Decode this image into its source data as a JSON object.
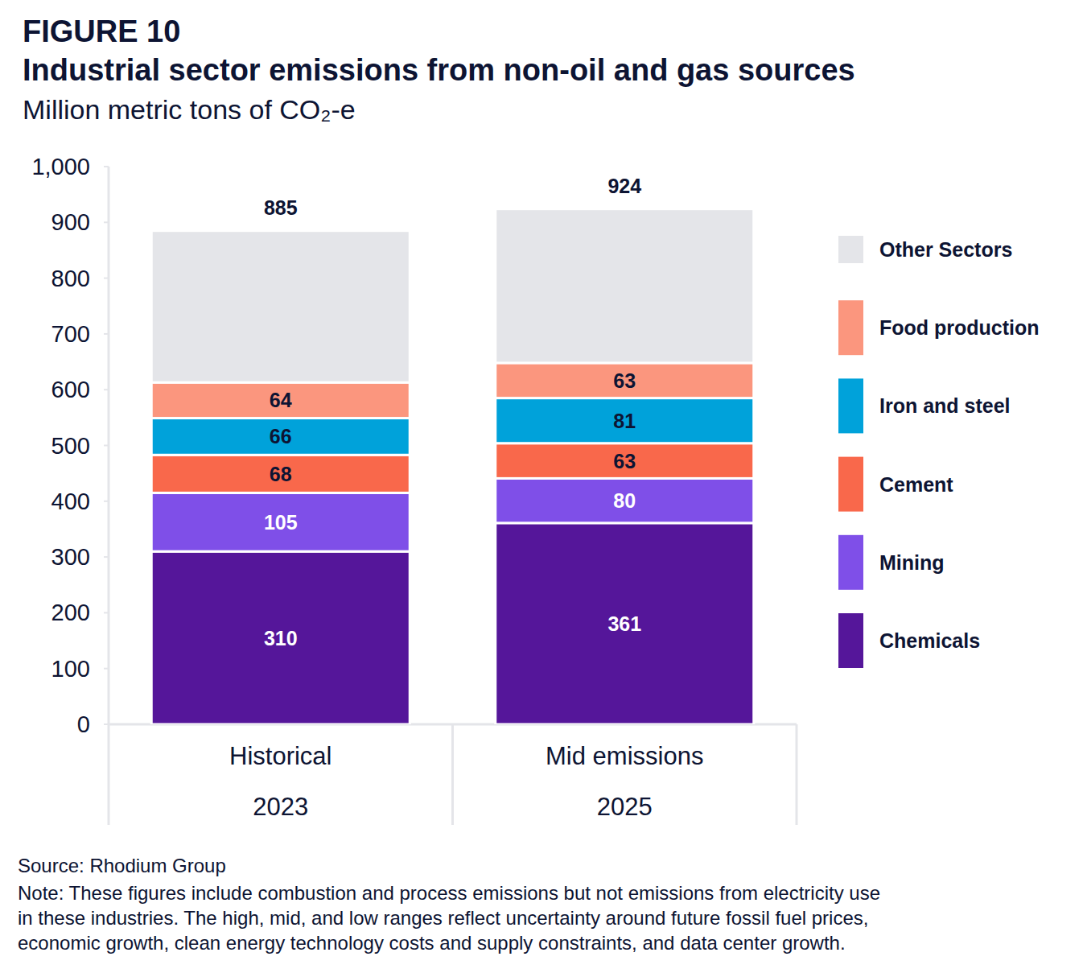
{
  "chart_data": {
    "type": "bar",
    "stacked": true,
    "data_labels": true,
    "grid": false,
    "legend": "right",
    "figure_label": "FIGURE 10",
    "title": "Industrial sector emissions from non-oil and gas sources",
    "subtitle": "Million metric tons of CO₂-e",
    "categories": [
      "Historical",
      "Mid emissions"
    ],
    "sub_categories": [
      "2023",
      "2025"
    ],
    "totals": [
      885,
      924
    ],
    "ylim": [
      0,
      1000
    ],
    "yticks": [
      0,
      100,
      200,
      300,
      400,
      500,
      600,
      700,
      800,
      900,
      {
        "value": 1000,
        "label": "1,000"
      }
    ],
    "series": [
      {
        "name": "Chemicals",
        "color": "#55169a",
        "values": [
          310,
          361
        ]
      },
      {
        "name": "Mining",
        "color": "#7f4fe8",
        "values": [
          105,
          80
        ]
      },
      {
        "name": "Cement",
        "color": "#f9684b",
        "values": [
          68,
          63
        ]
      },
      {
        "name": "Iron and steel",
        "color": "#00a2da",
        "values": [
          66,
          81
        ]
      },
      {
        "name": "Food production",
        "color": "#fb967e",
        "values": [
          64,
          63
        ]
      },
      {
        "name": "Other Sectors",
        "color": "#e4e5e9",
        "values": [
          272,
          276
        ],
        "data_labels": false
      }
    ],
    "source": "Source: Rhodium Group",
    "note": [
      "Note: These figures include combustion and process emissions but not emissions from electricity use",
      "in these industries. The high, mid, and low ranges reflect uncertainty around future fossil fuel prices,",
      "economic growth, clean energy technology costs and supply constraints, and data center growth."
    ]
  }
}
